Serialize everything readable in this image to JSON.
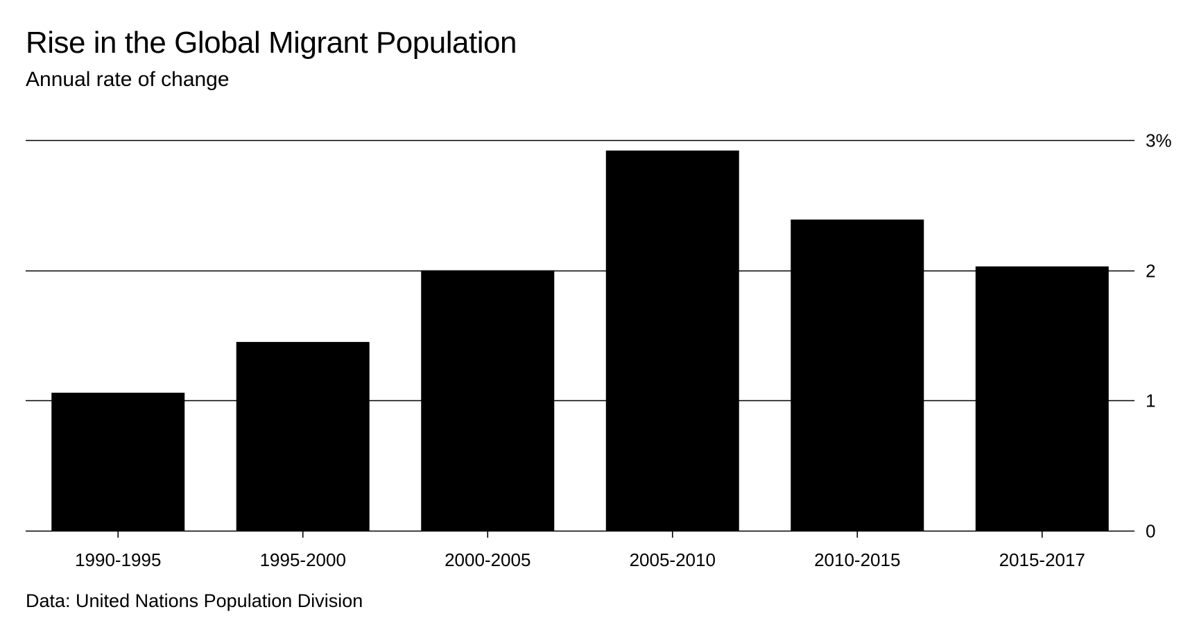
{
  "chart_data": {
    "type": "bar",
    "title": "Rise in the Global Migrant Population",
    "subtitle": "Annual rate of change",
    "source": "Data: United Nations Population Division",
    "categories": [
      "1990-1995",
      "1995-2000",
      "2000-2005",
      "2005-2010",
      "2010-2015",
      "2015-2017"
    ],
    "values": [
      1.06,
      1.45,
      2.0,
      2.92,
      2.39,
      2.03
    ],
    "ylim": [
      0,
      3
    ],
    "yticks": [
      {
        "value": 0,
        "label": "0"
      },
      {
        "value": 1,
        "label": "1"
      },
      {
        "value": 2,
        "label": "2"
      },
      {
        "value": 3,
        "label": "3%"
      }
    ],
    "xlabel": "",
    "ylabel": "",
    "grid": true,
    "y_axis_side": "right",
    "bar_color": "#000000"
  }
}
